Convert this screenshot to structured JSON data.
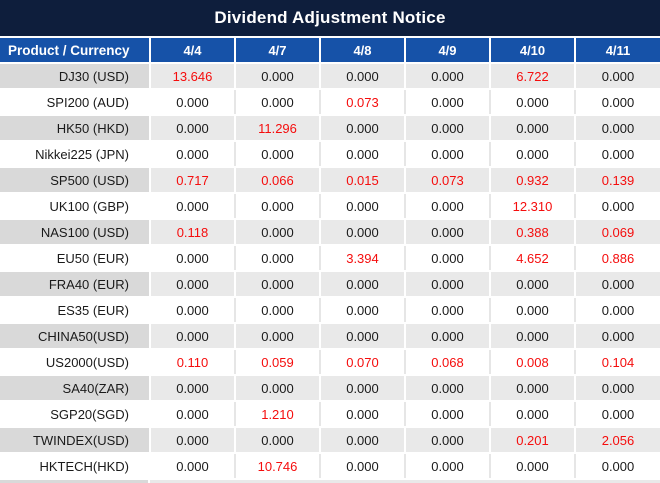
{
  "title": "Dividend Adjustment Notice",
  "colors": {
    "banner_bg": "#0E1E3C",
    "header_bg": "#1652A8",
    "gray_row_product_bg": "#D9D9D9",
    "gray_row_cell_bg": "#E9E9E9",
    "white_row_bg": "#FFFFFF",
    "value_zero_text": "#1A1A1A",
    "value_nonzero_text": "#F50D0D",
    "header_text": "#FFFFFF"
  },
  "table": {
    "header": [
      "Product / Currency",
      "4/4",
      "4/7",
      "4/8",
      "4/9",
      "4/10",
      "4/11"
    ],
    "rows": [
      {
        "product": "DJ30 (USD)",
        "values": [
          "13.646",
          "0.000",
          "0.000",
          "0.000",
          "6.722",
          "0.000"
        ]
      },
      {
        "product": "SPI200 (AUD)",
        "values": [
          "0.000",
          "0.000",
          "0.073",
          "0.000",
          "0.000",
          "0.000"
        ]
      },
      {
        "product": "HK50 (HKD)",
        "values": [
          "0.000",
          "11.296",
          "0.000",
          "0.000",
          "0.000",
          "0.000"
        ]
      },
      {
        "product": "Nikkei225 (JPN)",
        "values": [
          "0.000",
          "0.000",
          "0.000",
          "0.000",
          "0.000",
          "0.000"
        ]
      },
      {
        "product": "SP500 (USD)",
        "values": [
          "0.717",
          "0.066",
          "0.015",
          "0.073",
          "0.932",
          "0.139"
        ]
      },
      {
        "product": "UK100 (GBP)",
        "values": [
          "0.000",
          "0.000",
          "0.000",
          "0.000",
          "12.310",
          "0.000"
        ]
      },
      {
        "product": "NAS100 (USD)",
        "values": [
          "0.118",
          "0.000",
          "0.000",
          "0.000",
          "0.388",
          "0.069"
        ]
      },
      {
        "product": "EU50 (EUR)",
        "values": [
          "0.000",
          "0.000",
          "3.394",
          "0.000",
          "4.652",
          "0.886"
        ]
      },
      {
        "product": "FRA40 (EUR)",
        "values": [
          "0.000",
          "0.000",
          "0.000",
          "0.000",
          "0.000",
          "0.000"
        ]
      },
      {
        "product": "ES35 (EUR)",
        "values": [
          "0.000",
          "0.000",
          "0.000",
          "0.000",
          "0.000",
          "0.000"
        ]
      },
      {
        "product": "CHINA50(USD)",
        "values": [
          "0.000",
          "0.000",
          "0.000",
          "0.000",
          "0.000",
          "0.000"
        ]
      },
      {
        "product": "US2000(USD)",
        "values": [
          "0.110",
          "0.059",
          "0.070",
          "0.068",
          "0.008",
          "0.104"
        ]
      },
      {
        "product": "SA40(ZAR)",
        "values": [
          "0.000",
          "0.000",
          "0.000",
          "0.000",
          "0.000",
          "0.000"
        ]
      },
      {
        "product": "SGP20(SGD)",
        "values": [
          "0.000",
          "1.210",
          "0.000",
          "0.000",
          "0.000",
          "0.000"
        ]
      },
      {
        "product": "TWINDEX(USD)",
        "values": [
          "0.000",
          "0.000",
          "0.000",
          "0.000",
          "0.201",
          "2.056"
        ]
      },
      {
        "product": "HKTECH(HKD)",
        "values": [
          "0.000",
          "10.746",
          "0.000",
          "0.000",
          "0.000",
          "0.000"
        ]
      }
    ]
  }
}
